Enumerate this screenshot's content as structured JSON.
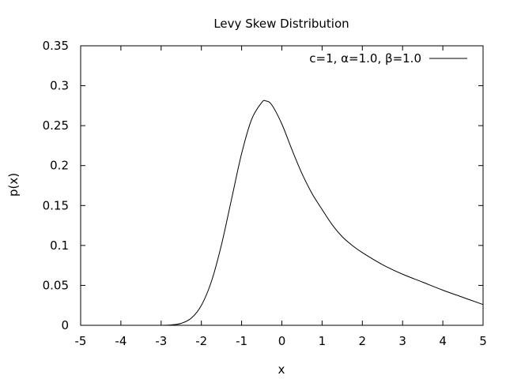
{
  "chart_data": {
    "type": "line",
    "title": "Levy Skew Distribution",
    "xlabel": "x",
    "ylabel": "p(x)",
    "xlim": [
      -5,
      5
    ],
    "ylim": [
      0,
      0.35
    ],
    "x_ticks": [
      -5,
      -4,
      -3,
      -2,
      -1,
      0,
      1,
      2,
      3,
      4,
      5
    ],
    "x_tick_labels": [
      "-5",
      "-4",
      "-3",
      "-2",
      "-1",
      "0",
      "1",
      "2",
      "3",
      "4",
      "5"
    ],
    "y_ticks": [
      0,
      0.05,
      0.1,
      0.15,
      0.2,
      0.25,
      0.3,
      0.35
    ],
    "y_tick_labels": [
      "0",
      "0.05",
      "0.1",
      "0.15",
      "0.2",
      "0.25",
      "0.3",
      "0.35"
    ],
    "grid": false,
    "legend_position": "top-right",
    "series": [
      {
        "name": "c=1, α=1.0, β=1.0",
        "color": "#000000",
        "x": [
          -5,
          -4,
          -3,
          -2.75,
          -2.5,
          -2.25,
          -2.0,
          -1.75,
          -1.5,
          -1.25,
          -1.0,
          -0.75,
          -0.5,
          -0.4,
          -0.25,
          0.0,
          0.25,
          0.5,
          0.75,
          1.0,
          1.25,
          1.5,
          1.75,
          2.0,
          2.5,
          3.0,
          3.5,
          4.0,
          4.5,
          5.0
        ],
        "y": [
          0.0,
          0.0,
          0.0,
          0.0005,
          0.0025,
          0.009,
          0.025,
          0.055,
          0.101,
          0.158,
          0.215,
          0.258,
          0.279,
          0.281,
          0.276,
          0.252,
          0.22,
          0.19,
          0.165,
          0.145,
          0.126,
          0.111,
          0.1,
          0.091,
          0.076,
          0.064,
          0.054,
          0.044,
          0.035,
          0.026
        ]
      }
    ]
  }
}
